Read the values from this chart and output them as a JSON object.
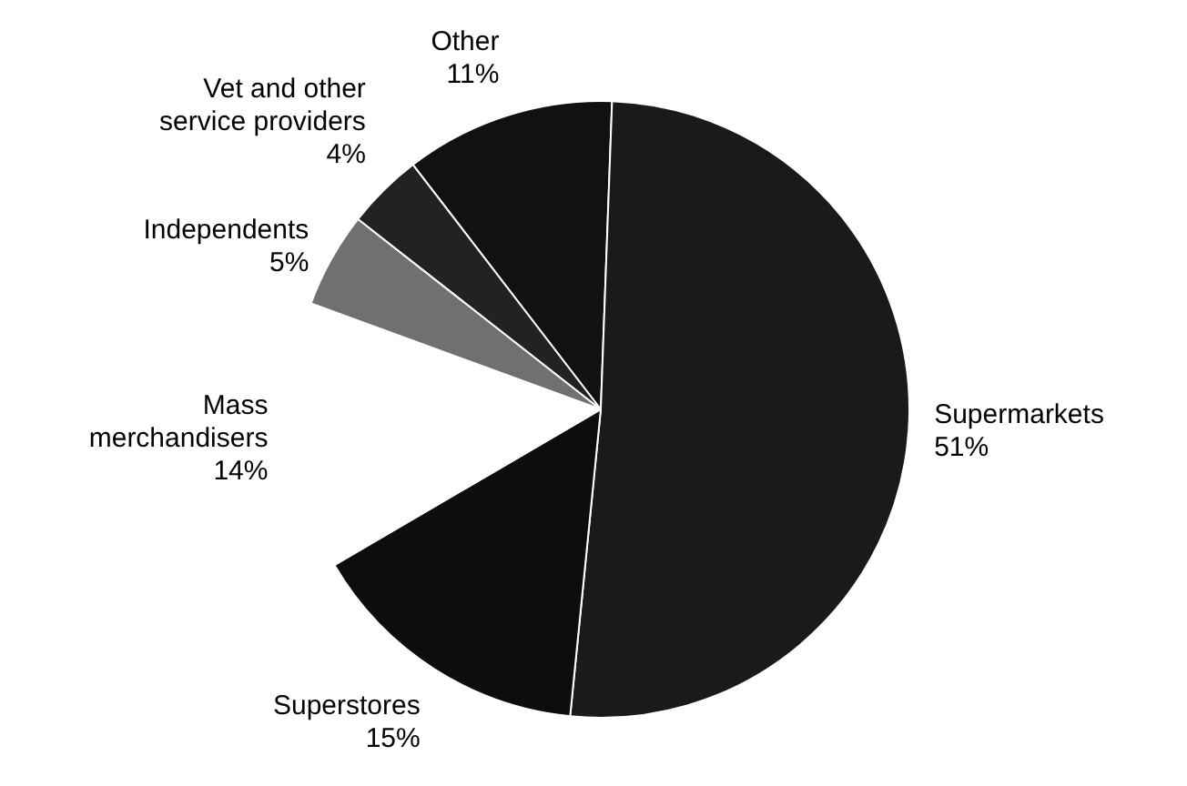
{
  "chart_data": {
    "type": "pie",
    "categories": [
      "Other",
      "Supermarkets",
      "Superstores",
      "Mass merchandisers",
      "Independents",
      "Vet and other service providers"
    ],
    "values": [
      11,
      51,
      15,
      14,
      5,
      4
    ],
    "value_labels": [
      "11%",
      "51%",
      "15%",
      "14%",
      "5%",
      "4%"
    ],
    "colors": [
      "#111111",
      "#1a1a1a",
      "#0d0d0d",
      "#ffffff",
      "#707070",
      "#222222"
    ],
    "legend": false
  }
}
